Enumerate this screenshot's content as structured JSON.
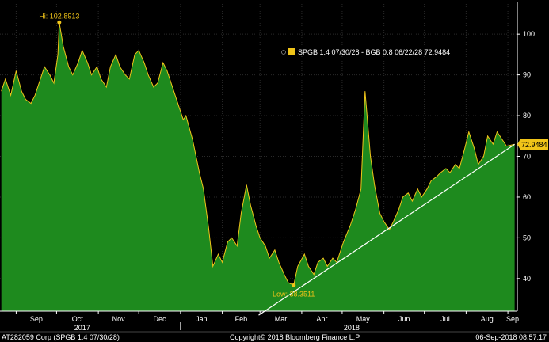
{
  "chart_data": {
    "type": "area",
    "series": [
      {
        "name": "SPGB 1.4 07/30/28 - BGB 0.8 06/22/28 72.9484",
        "color": "#f0c419",
        "fill": "#1e8a1e",
        "points": [
          [
            "2017-08-21",
            86
          ],
          [
            "2017-08-24",
            89
          ],
          [
            "2017-08-28",
            85
          ],
          [
            "2017-09-01",
            91
          ],
          [
            "2017-09-05",
            86
          ],
          [
            "2017-09-08",
            84
          ],
          [
            "2017-09-12",
            83
          ],
          [
            "2017-09-15",
            85
          ],
          [
            "2017-09-19",
            89
          ],
          [
            "2017-09-22",
            92
          ],
          [
            "2017-09-26",
            90
          ],
          [
            "2017-09-29",
            88
          ],
          [
            "2017-10-02",
            95
          ],
          [
            "2017-10-03",
            102.8913
          ],
          [
            "2017-10-06",
            97
          ],
          [
            "2017-10-10",
            92
          ],
          [
            "2017-10-13",
            90
          ],
          [
            "2017-10-17",
            93
          ],
          [
            "2017-10-20",
            96
          ],
          [
            "2017-10-24",
            93
          ],
          [
            "2017-10-27",
            90
          ],
          [
            "2017-10-31",
            92
          ],
          [
            "2017-11-03",
            89
          ],
          [
            "2017-11-07",
            87
          ],
          [
            "2017-11-10",
            92
          ],
          [
            "2017-11-14",
            95
          ],
          [
            "2017-11-17",
            92
          ],
          [
            "2017-11-21",
            90
          ],
          [
            "2017-11-24",
            89
          ],
          [
            "2017-11-28",
            95
          ],
          [
            "2017-12-01",
            96
          ],
          [
            "2017-12-05",
            93
          ],
          [
            "2017-12-08",
            90
          ],
          [
            "2017-12-12",
            87
          ],
          [
            "2017-12-15",
            88
          ],
          [
            "2017-12-19",
            93
          ],
          [
            "2017-12-22",
            91
          ],
          [
            "2017-12-27",
            86
          ],
          [
            "2017-12-29",
            84
          ],
          [
            "2018-01-03",
            79
          ],
          [
            "2018-01-05",
            80
          ],
          [
            "2018-01-10",
            74
          ],
          [
            "2018-01-15",
            66
          ],
          [
            "2018-01-18",
            62
          ],
          [
            "2018-01-22",
            52
          ],
          [
            "2018-01-25",
            43
          ],
          [
            "2018-01-29",
            46
          ],
          [
            "2018-02-01",
            44
          ],
          [
            "2018-02-05",
            49
          ],
          [
            "2018-02-08",
            50
          ],
          [
            "2018-02-12",
            48
          ],
          [
            "2018-02-15",
            56
          ],
          [
            "2018-02-19",
            63
          ],
          [
            "2018-02-22",
            58
          ],
          [
            "2018-02-26",
            53
          ],
          [
            "2018-03-01",
            50
          ],
          [
            "2018-03-05",
            48
          ],
          [
            "2018-03-08",
            45
          ],
          [
            "2018-03-12",
            47
          ],
          [
            "2018-03-15",
            44
          ],
          [
            "2018-03-19",
            41
          ],
          [
            "2018-03-22",
            39
          ],
          [
            "2018-03-26",
            38.3511
          ],
          [
            "2018-03-29",
            43
          ],
          [
            "2018-04-03",
            46
          ],
          [
            "2018-04-06",
            43
          ],
          [
            "2018-04-10",
            41
          ],
          [
            "2018-04-13",
            44
          ],
          [
            "2018-04-17",
            45
          ],
          [
            "2018-04-20",
            43
          ],
          [
            "2018-04-24",
            45
          ],
          [
            "2018-04-27",
            44
          ],
          [
            "2018-05-02",
            49
          ],
          [
            "2018-05-07",
            53
          ],
          [
            "2018-05-11",
            57
          ],
          [
            "2018-05-15",
            62
          ],
          [
            "2018-05-18",
            86
          ],
          [
            "2018-05-22",
            70
          ],
          [
            "2018-05-25",
            63
          ],
          [
            "2018-05-29",
            56
          ],
          [
            "2018-06-01",
            54
          ],
          [
            "2018-06-05",
            52
          ],
          [
            "2018-06-08",
            54
          ],
          [
            "2018-06-12",
            57
          ],
          [
            "2018-06-15",
            60
          ],
          [
            "2018-06-19",
            61
          ],
          [
            "2018-06-22",
            59
          ],
          [
            "2018-06-26",
            62
          ],
          [
            "2018-06-29",
            60
          ],
          [
            "2018-07-03",
            62
          ],
          [
            "2018-07-06",
            64
          ],
          [
            "2018-07-10",
            65
          ],
          [
            "2018-07-13",
            66
          ],
          [
            "2018-07-17",
            67
          ],
          [
            "2018-07-20",
            66
          ],
          [
            "2018-07-24",
            68
          ],
          [
            "2018-07-27",
            67
          ],
          [
            "2018-07-31",
            72
          ],
          [
            "2018-08-03",
            76
          ],
          [
            "2018-08-07",
            72
          ],
          [
            "2018-08-10",
            68
          ],
          [
            "2018-08-14",
            70
          ],
          [
            "2018-08-17",
            75
          ],
          [
            "2018-08-21",
            73
          ],
          [
            "2018-08-24",
            76
          ],
          [
            "2018-08-28",
            74
          ],
          [
            "2018-08-31",
            72.5
          ],
          [
            "2018-09-06",
            72.9484
          ]
        ]
      }
    ],
    "trendline": [
      [
        "2018-02-28",
        31
      ],
      [
        "2018-09-06",
        72.9484
      ]
    ],
    "annotations": {
      "high_label": "Hi: 102.8913",
      "high_point": [
        "2017-10-03",
        102.8913
      ],
      "low_label": "Low: 38.3511",
      "low_point": [
        "2018-03-26",
        38.3511
      ],
      "last_value_label": "72.9484",
      "last_value": 72.9484
    },
    "legend": {
      "position": "top-center",
      "label": "SPGB 1.4 07/30/28 - BGB 0.8 06/22/28 72.9484"
    },
    "y_axis": {
      "position": "right",
      "ylim": [
        32,
        108
      ],
      "ticks": [
        40,
        50,
        60,
        70,
        80,
        90,
        100
      ],
      "tick_labels": [
        "40",
        "50",
        "60",
        "70",
        "80",
        "90",
        "100"
      ]
    },
    "x_axis": {
      "xlim": [
        "2017-08-20",
        "2018-09-08"
      ],
      "ticks": [
        {
          "label": "Sep",
          "date": "2017-09-01"
        },
        {
          "label": "Oct",
          "date": "2017-10-01"
        },
        {
          "label": "Nov",
          "date": "2017-11-01"
        },
        {
          "label": "Dec",
          "date": "2017-12-01"
        },
        {
          "label": "Jan",
          "date": "2018-01-01"
        },
        {
          "label": "Feb",
          "date": "2018-02-01"
        },
        {
          "label": "Mar",
          "date": "2018-03-01"
        },
        {
          "label": "Apr",
          "date": "2018-04-01"
        },
        {
          "label": "May",
          "date": "2018-05-01"
        },
        {
          "label": "Jun",
          "date": "2018-06-01"
        },
        {
          "label": "Jul",
          "date": "2018-07-01"
        },
        {
          "label": "Aug",
          "date": "2018-08-01"
        },
        {
          "label": "Sep",
          "date": "2018-09-01"
        }
      ],
      "year_labels": [
        {
          "label": "2017",
          "date": "2017-10-20"
        },
        {
          "label": "2018",
          "date": "2018-05-08"
        }
      ]
    },
    "grid": true
  },
  "footer": {
    "left": "AT282059 Corp (SPGB 1.4 07/30/28)",
    "center": "Copyright© 2018 Bloomberg Finance L.P.",
    "right": "06-Sep-2018 08:57:17"
  }
}
